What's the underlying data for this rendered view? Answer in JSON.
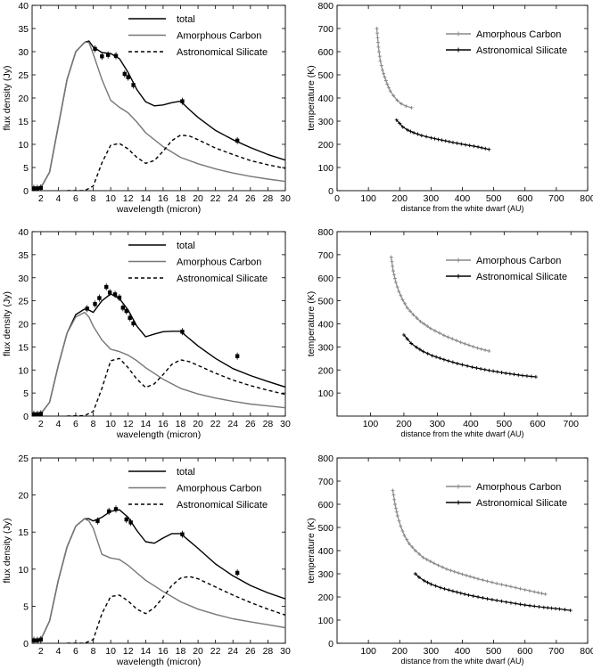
{
  "chart_data": [
    {
      "type": "line",
      "xlabel": "wavelength (micron)",
      "ylabel": "flux density (Jy)",
      "xlim": [
        1,
        30
      ],
      "ylim": [
        0,
        40
      ],
      "xticks": [
        2,
        4,
        6,
        8,
        10,
        12,
        14,
        16,
        18,
        20,
        22,
        24,
        26,
        28,
        30
      ],
      "yticks": [
        0,
        5,
        10,
        15,
        20,
        25,
        30,
        35,
        40
      ],
      "legend": "top-right",
      "series": [
        {
          "name": "total",
          "color": "#000000",
          "style": "solid",
          "x": [
            1,
            2,
            3,
            4,
            5,
            6,
            7,
            7.5,
            8,
            9,
            10,
            11,
            12,
            13,
            14,
            15,
            16,
            17,
            18,
            19,
            20,
            22,
            24,
            26,
            28,
            30
          ],
          "y": [
            0.5,
            0.6,
            4,
            14,
            24,
            30,
            32,
            32.3,
            31,
            29.8,
            29.6,
            28.5,
            25.5,
            21.8,
            19.2,
            18.3,
            18.5,
            19,
            19.3,
            17.5,
            15.8,
            13,
            11,
            9.3,
            7.8,
            6.6
          ]
        },
        {
          "name": "Amorphous Carbon",
          "color": "#777777",
          "style": "solid",
          "x": [
            1,
            2,
            3,
            4,
            5,
            6,
            7,
            7.5,
            8,
            9,
            10,
            11,
            12,
            13,
            14,
            16,
            18,
            20,
            22,
            24,
            26,
            28,
            30
          ],
          "y": [
            0.5,
            0.6,
            4,
            14,
            24,
            30,
            32,
            32,
            29.5,
            24,
            19.5,
            18,
            16.8,
            14.8,
            12.5,
            9.5,
            7.2,
            5.8,
            4.7,
            3.8,
            3.1,
            2.5,
            2
          ]
        },
        {
          "name": "Astronomical Silicate",
          "color": "#000000",
          "style": "dashed",
          "x": [
            5,
            7,
            8,
            9,
            10,
            11,
            12,
            13,
            14,
            15,
            16,
            17,
            18,
            19,
            20,
            22,
            24,
            26,
            28,
            30
          ],
          "y": [
            0,
            0,
            1,
            6,
            9.8,
            10.2,
            9,
            7.2,
            5.9,
            6.5,
            8.5,
            10.8,
            12,
            11.8,
            11,
            9.2,
            7.8,
            6.5,
            5.6,
            4.8
          ]
        },
        {
          "name": "",
          "color": "#000000",
          "style": "points",
          "x": [
            1.2,
            1.6,
            2,
            8.2,
            9,
            9.7,
            10.6,
            11.6,
            12,
            12.6,
            18.2,
            24.5
          ],
          "y": [
            0.5,
            0.5,
            0.6,
            30.6,
            29,
            29.3,
            29.1,
            25.2,
            24.5,
            22.8,
            19.3,
            10.8
          ]
        }
      ]
    },
    {
      "type": "line",
      "xlabel": "distance from the white dwarf (AU)",
      "ylabel": "temperature (K)",
      "xlim": [
        0,
        800
      ],
      "ylim": [
        0,
        800
      ],
      "xticks": [
        0,
        100,
        200,
        300,
        400,
        500,
        600,
        700,
        800
      ],
      "yticks": [
        0,
        100,
        200,
        300,
        400,
        500,
        600,
        700,
        800
      ],
      "legend": "top-right",
      "series": [
        {
          "name": "Amorphous Carbon",
          "color": "#888888",
          "marker": "plus",
          "x": [
            127,
            132,
            138,
            145,
            152,
            160,
            170,
            180,
            192,
            205,
            220,
            238
          ],
          "y": [
            700,
            620,
            560,
            520,
            490,
            460,
            430,
            410,
            390,
            375,
            365,
            358
          ]
        },
        {
          "name": "Astronomical Silicate",
          "color": "#000000",
          "marker": "plus",
          "x": [
            190,
            200,
            210,
            225,
            245,
            270,
            300,
            335,
            370,
            410,
            450,
            485
          ],
          "y": [
            305,
            290,
            275,
            262,
            250,
            238,
            228,
            218,
            208,
            198,
            189,
            178
          ]
        }
      ]
    },
    {
      "type": "line",
      "xlabel": "wavelength (micron)",
      "ylabel": "flux density (Jy)",
      "xlim": [
        1,
        30
      ],
      "ylim": [
        0,
        40
      ],
      "xticks": [
        2,
        4,
        6,
        8,
        10,
        12,
        14,
        16,
        18,
        20,
        22,
        24,
        26,
        28,
        30
      ],
      "yticks": [
        0,
        5,
        10,
        15,
        20,
        25,
        30,
        35,
        40
      ],
      "legend": "top-right",
      "series": [
        {
          "name": "total",
          "color": "#000000",
          "style": "solid",
          "x": [
            1,
            2,
            3,
            4,
            5,
            6,
            7,
            7.5,
            8,
            9,
            10,
            11,
            12,
            13,
            14,
            15,
            16,
            17,
            18,
            19,
            20,
            22,
            24,
            26,
            28,
            30
          ],
          "y": [
            0.4,
            0.5,
            3,
            11,
            18,
            22,
            23.2,
            23,
            22.5,
            25,
            26.5,
            25.5,
            23,
            19.5,
            17.2,
            17.8,
            18.3,
            18.4,
            18.4,
            16.8,
            15.2,
            12.5,
            10.3,
            8.8,
            7.5,
            6.3
          ]
        },
        {
          "name": "Amorphous Carbon",
          "color": "#777777",
          "style": "solid",
          "x": [
            1,
            2,
            3,
            4,
            5,
            6,
            7,
            7.5,
            8,
            9,
            10,
            11,
            12,
            13,
            14,
            16,
            18,
            20,
            22,
            24,
            26,
            28,
            30
          ],
          "y": [
            0.4,
            0.5,
            3,
            11,
            18,
            21.5,
            22.5,
            21.5,
            19.5,
            16.5,
            14.5,
            14,
            13.2,
            12,
            10.5,
            8,
            6,
            4.8,
            3.9,
            3.2,
            2.6,
            2.2,
            1.8
          ]
        },
        {
          "name": "Astronomical Silicate",
          "color": "#000000",
          "style": "dashed",
          "x": [
            5,
            7,
            8,
            9,
            10,
            11,
            12,
            13,
            14,
            15,
            16,
            17,
            18,
            19,
            20,
            22,
            24,
            26,
            28,
            30
          ],
          "y": [
            0,
            0.1,
            1,
            6,
            12,
            12.5,
            10.5,
            8,
            6.2,
            7,
            9,
            11.2,
            12.2,
            11.8,
            11,
            9.3,
            7.8,
            6.6,
            5.6,
            4.7
          ]
        },
        {
          "name": "",
          "color": "#000000",
          "style": "points",
          "x": [
            1.2,
            1.6,
            2,
            7.3,
            8.2,
            8.7,
            9.5,
            9.9,
            10.5,
            11,
            11.4,
            11.8,
            12.2,
            12.6,
            18.2,
            24.5
          ],
          "y": [
            0.4,
            0.4,
            0.5,
            23.3,
            24.3,
            25.6,
            28,
            26.8,
            26.4,
            25.7,
            23.5,
            22.8,
            21.3,
            20.1,
            18.3,
            13
          ]
        }
      ]
    },
    {
      "type": "line",
      "xlabel": "distance from the white dwarf (AU)",
      "ylabel": "temperature (K)",
      "xlim": [
        0,
        750
      ],
      "ylim": [
        0,
        800
      ],
      "xticks": [
        100,
        200,
        300,
        400,
        500,
        600,
        700
      ],
      "yticks": [
        100,
        200,
        300,
        400,
        500,
        600,
        700,
        800
      ],
      "legend": "top-right",
      "series": [
        {
          "name": "Amorphous Carbon",
          "color": "#888888",
          "marker": "plus",
          "x": [
            162,
            168,
            176,
            185,
            196,
            210,
            228,
            250,
            280,
            320,
            370,
            420,
            455
          ],
          "y": [
            690,
            630,
            580,
            540,
            505,
            470,
            440,
            410,
            380,
            350,
            320,
            295,
            282
          ]
        },
        {
          "name": "Astronomical Silicate",
          "color": "#000000",
          "marker": "plus",
          "x": [
            200,
            210,
            222,
            238,
            258,
            285,
            320,
            360,
            405,
            455,
            505,
            555,
            595
          ],
          "y": [
            352,
            335,
            315,
            298,
            280,
            262,
            245,
            228,
            212,
            198,
            186,
            176,
            170
          ]
        }
      ]
    },
    {
      "type": "line",
      "xlabel": "wavelength (micron)",
      "ylabel": "flux density (Jy)",
      "xlim": [
        1,
        30
      ],
      "ylim": [
        0,
        25
      ],
      "xticks": [
        2,
        4,
        6,
        8,
        10,
        12,
        14,
        16,
        18,
        20,
        22,
        24,
        26,
        28,
        30
      ],
      "yticks": [
        0,
        5,
        10,
        15,
        20,
        25
      ],
      "legend": "top-right",
      "series": [
        {
          "name": "total",
          "color": "#000000",
          "style": "solid",
          "x": [
            1,
            2,
            3,
            4,
            5,
            6,
            7,
            7.5,
            8,
            9,
            10,
            11,
            12,
            13,
            14,
            15,
            16,
            17,
            18,
            19,
            20,
            22,
            24,
            26,
            28,
            30
          ],
          "y": [
            0.4,
            0.5,
            3,
            8.5,
            13,
            15.8,
            16.8,
            16.8,
            16.5,
            17,
            17.8,
            18,
            17,
            15.2,
            13.7,
            13.5,
            14.2,
            14.8,
            14.8,
            13.8,
            12.8,
            10.7,
            9.1,
            7.8,
            6.8,
            6
          ]
        },
        {
          "name": "Amorphous Carbon",
          "color": "#777777",
          "style": "solid",
          "x": [
            1,
            2,
            3,
            4,
            5,
            6,
            7,
            7.5,
            8,
            9,
            10,
            11,
            12,
            13,
            14,
            16,
            18,
            20,
            22,
            24,
            26,
            28,
            30
          ],
          "y": [
            0.4,
            0.5,
            3,
            8.5,
            13,
            15.8,
            16.8,
            16.5,
            15.5,
            12,
            11.5,
            11.3,
            10.5,
            9.5,
            8.5,
            7,
            5.6,
            4.6,
            3.9,
            3.3,
            2.9,
            2.5,
            2.1
          ]
        },
        {
          "name": "Astronomical Silicate",
          "color": "#000000",
          "style": "dashed",
          "x": [
            5,
            7,
            8,
            9,
            10,
            11,
            12,
            13,
            14,
            15,
            16,
            17,
            18,
            19,
            20,
            22,
            24,
            26,
            28,
            30
          ],
          "y": [
            0,
            0,
            0.5,
            4,
            6.3,
            6.5,
            5.7,
            4.6,
            4,
            4.8,
            6.2,
            7.8,
            8.8,
            9,
            8.7,
            7.6,
            6.5,
            5.5,
            4.6,
            3.8
          ]
        },
        {
          "name": "",
          "color": "#000000",
          "style": "points",
          "x": [
            1.2,
            1.6,
            2,
            8.5,
            9.8,
            10.6,
            11.8,
            12.3,
            18.2,
            24.5
          ],
          "y": [
            0.4,
            0.4,
            0.5,
            16.5,
            17.8,
            18.1,
            16.7,
            16.3,
            14.7,
            9.5
          ]
        }
      ]
    },
    {
      "type": "line",
      "xlabel": "distance from the white dwarf (AU)",
      "ylabel": "temperature (K)",
      "xlim": [
        0,
        800
      ],
      "ylim": [
        0,
        800
      ],
      "xticks": [
        100,
        200,
        300,
        400,
        500,
        600,
        700,
        800
      ],
      "yticks": [
        0,
        100,
        200,
        300,
        400,
        500,
        600,
        700,
        800
      ],
      "legend": "top-right",
      "series": [
        {
          "name": "Amorphous Carbon",
          "color": "#888888",
          "marker": "plus",
          "x": [
            178,
            185,
            193,
            203,
            215,
            230,
            250,
            275,
            310,
            350,
            400,
            450,
            510,
            570,
            630,
            665
          ],
          "y": [
            660,
            600,
            550,
            505,
            465,
            430,
            400,
            370,
            345,
            320,
            298,
            278,
            258,
            240,
            222,
            212
          ]
        },
        {
          "name": "Astronomical Silicate",
          "color": "#000000",
          "marker": "plus",
          "x": [
            250,
            262,
            278,
            300,
            330,
            370,
            420,
            480,
            540,
            600,
            660,
            710,
            745
          ],
          "y": [
            300,
            285,
            270,
            255,
            240,
            225,
            208,
            192,
            178,
            165,
            155,
            148,
            142
          ]
        }
      ]
    }
  ]
}
